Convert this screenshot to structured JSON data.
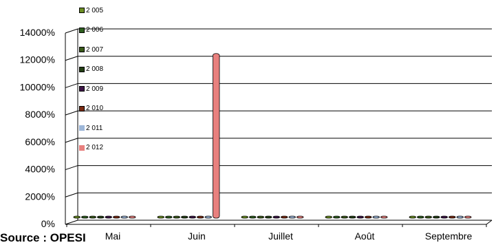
{
  "chart_data": {
    "type": "bar",
    "title": "",
    "xlabel": "",
    "ylabel": "",
    "categories": [
      "Mai",
      "Juin",
      "Juillet",
      "Août",
      "Septembre"
    ],
    "y_ticks": [
      "0%",
      "2000%",
      "4000%",
      "6000%",
      "8000%",
      "10000%",
      "12000%",
      "14000%"
    ],
    "ylim": [
      0,
      14000
    ],
    "grid": true,
    "legend_position": "top-left",
    "series": [
      {
        "name": "2 005",
        "color": "#6b8e23",
        "values": [
          30,
          30,
          30,
          30,
          30
        ]
      },
      {
        "name": "2 006",
        "color": "#2e5f1f",
        "values": [
          30,
          30,
          30,
          30,
          30
        ]
      },
      {
        "name": "2 007",
        "color": "#3a5a1a",
        "values": [
          30,
          30,
          30,
          30,
          30
        ]
      },
      {
        "name": "2 008",
        "color": "#233f14",
        "values": [
          30,
          30,
          30,
          30,
          30
        ]
      },
      {
        "name": "2 009",
        "color": "#3d1547",
        "values": [
          30,
          30,
          30,
          30,
          30
        ]
      },
      {
        "name": "2 010",
        "color": "#7a2a12",
        "values": [
          30,
          30,
          30,
          30,
          30
        ]
      },
      {
        "name": "2 011",
        "color": "#9db6d8",
        "values": [
          20,
          20,
          20,
          20,
          20
        ]
      },
      {
        "name": "2 012",
        "color": "#e8807e",
        "values": [
          20,
          12050,
          20,
          20,
          20
        ]
      }
    ]
  },
  "page": {
    "source_text": "Source : OPESI"
  }
}
